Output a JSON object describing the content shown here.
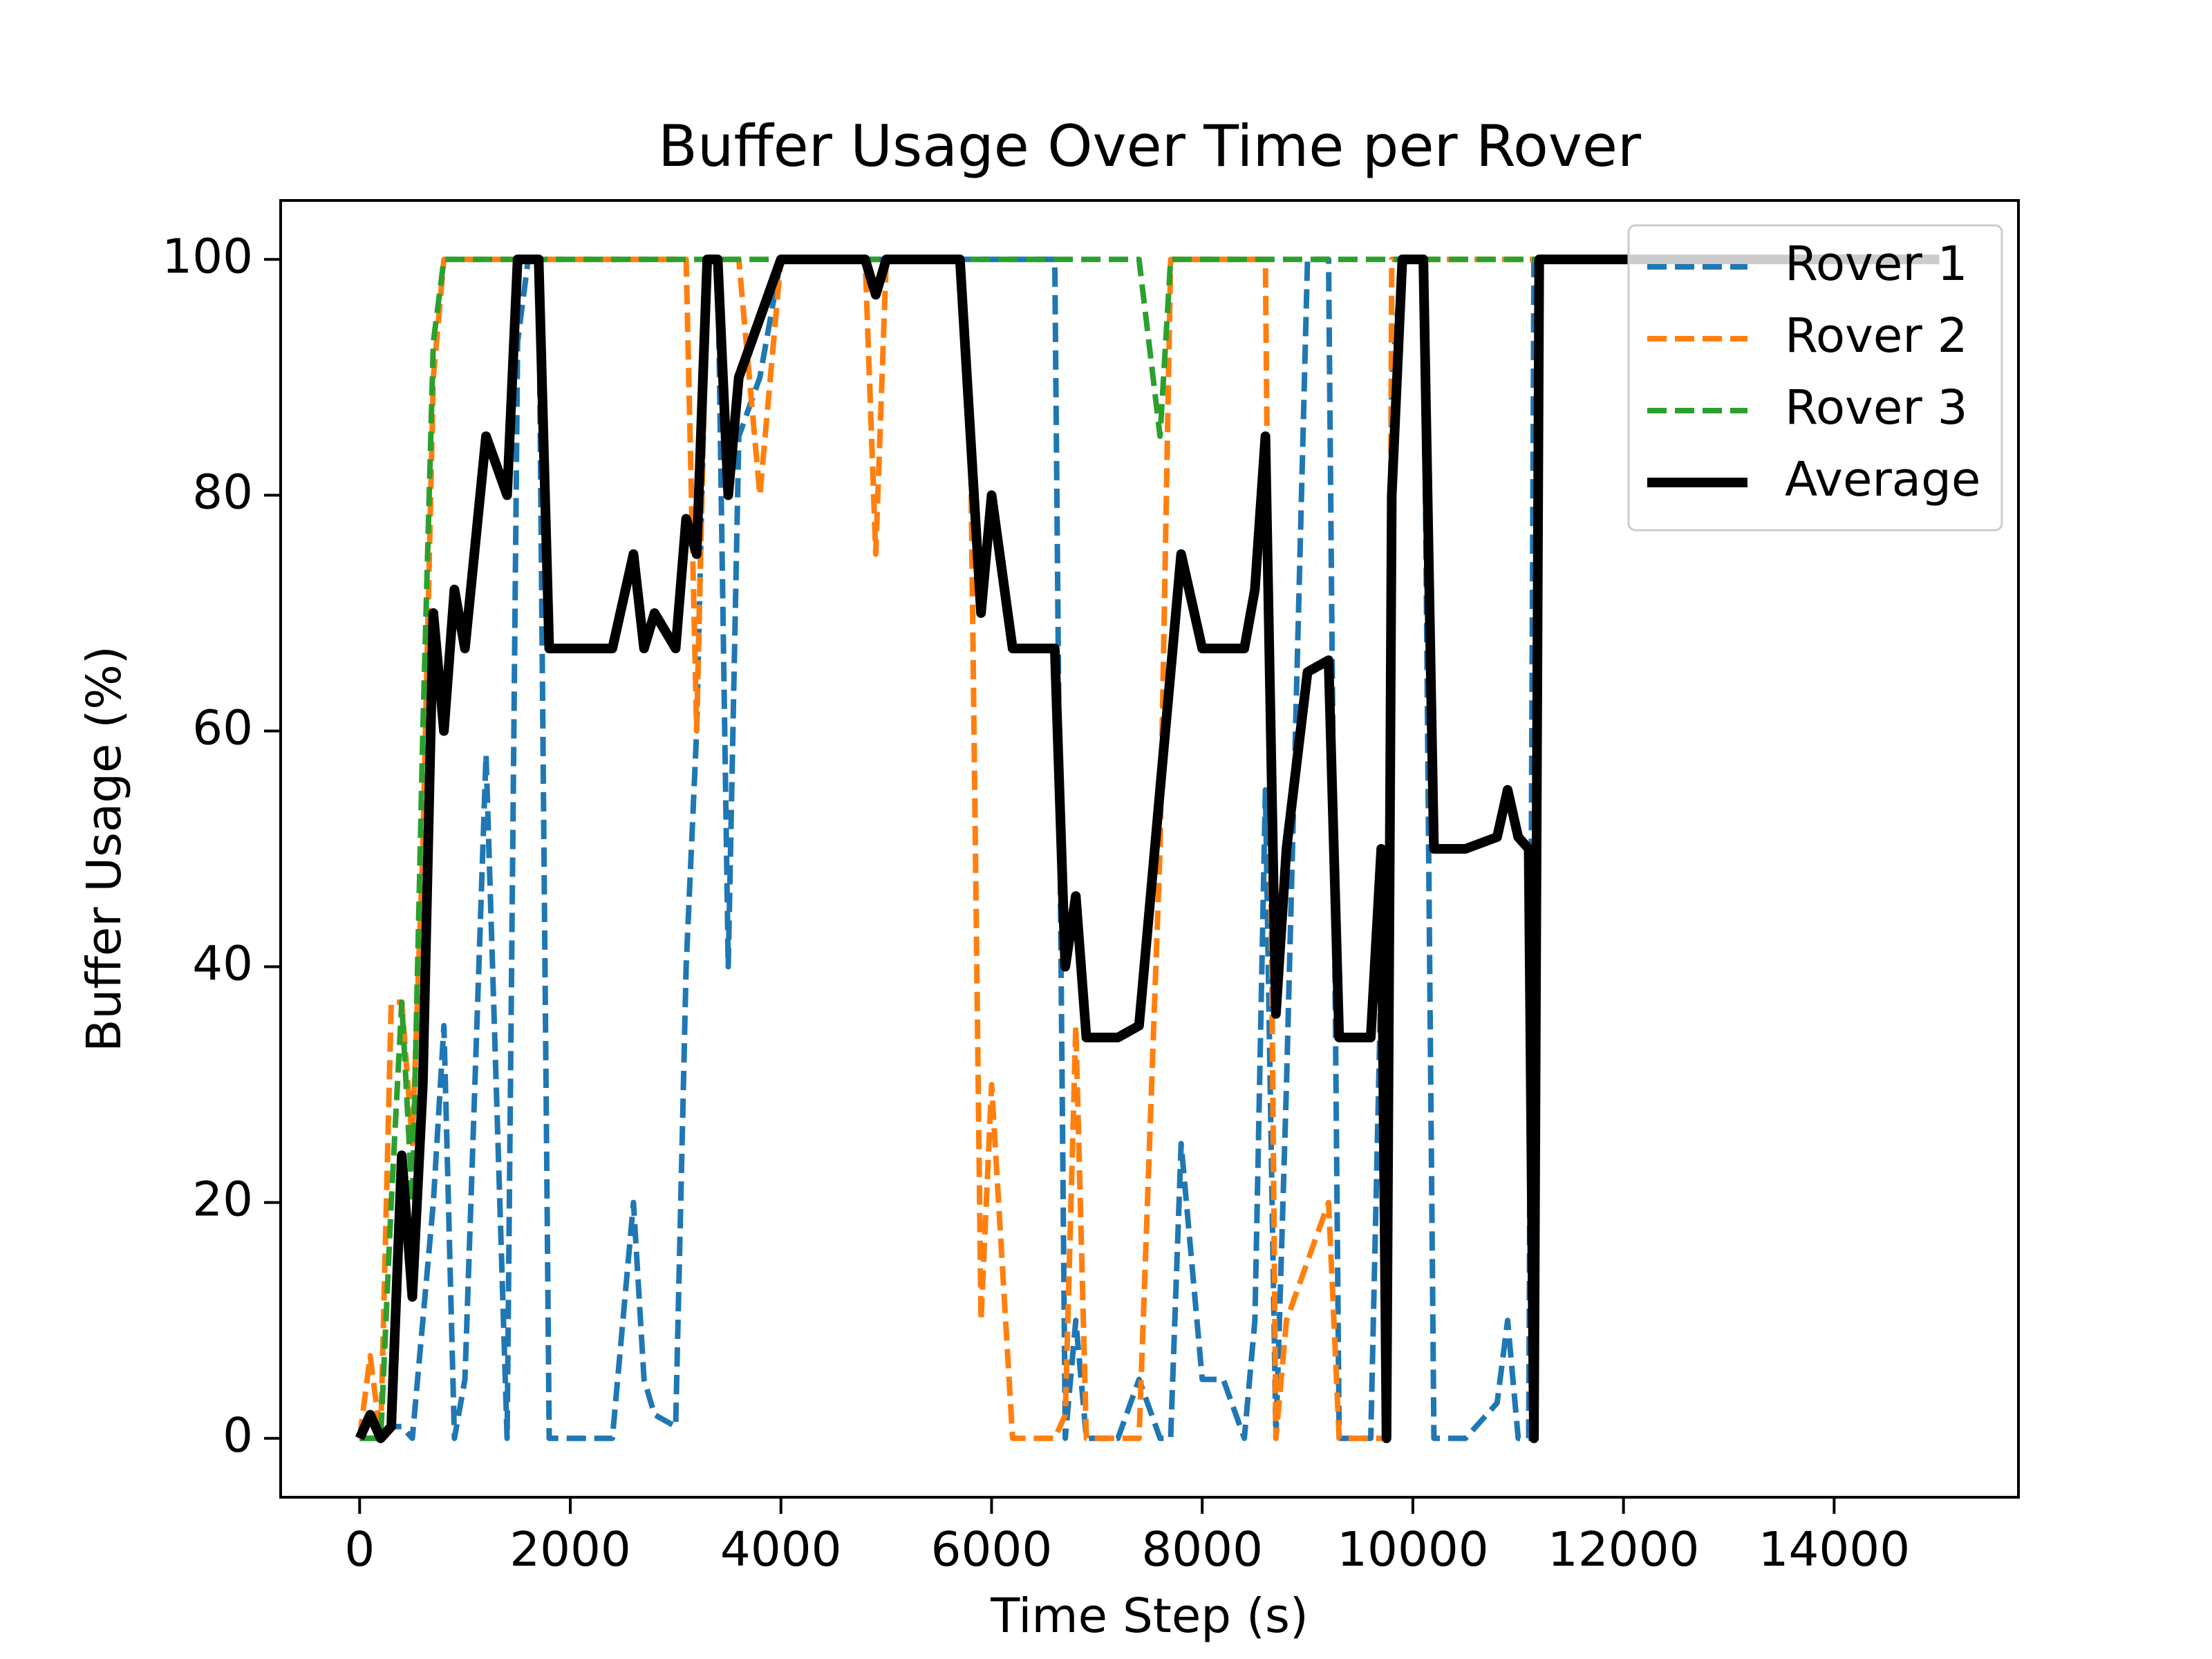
{
  "chart_data": {
    "type": "line",
    "title": "Buffer Usage Over Time per Rover",
    "xlabel": "Time Step (s)",
    "ylabel": "Buffer Usage (%)",
    "x": [
      0,
      100,
      200,
      300,
      400,
      500,
      600,
      700,
      800,
      900,
      1000,
      1200,
      1400,
      1500,
      1600,
      1700,
      1800,
      2000,
      2200,
      2400,
      2600,
      2700,
      2800,
      3000,
      3100,
      3200,
      3300,
      3400,
      3500,
      3600,
      3800,
      4000,
      4500,
      4800,
      4900,
      5000,
      5500,
      5700,
      5800,
      5900,
      6000,
      6200,
      6400,
      6600,
      6700,
      6800,
      6900,
      7000,
      7200,
      7400,
      7600,
      7700,
      7800,
      8000,
      8200,
      8400,
      8500,
      8600,
      8700,
      8800,
      9000,
      9200,
      9300,
      9400,
      9600,
      9700,
      9750,
      9800,
      9900,
      10000,
      10100,
      10200,
      10500,
      10800,
      10900,
      11000,
      11100,
      11150,
      11200,
      12000,
      15000
    ],
    "series": [
      {
        "name": "Rover 1",
        "color": "#1f77b4",
        "dashed": true,
        "values": [
          0,
          0,
          0,
          1,
          1,
          0,
          10,
          20,
          35,
          0,
          5,
          58,
          0,
          93,
          100,
          100,
          0,
          0,
          0,
          0,
          20,
          5,
          2,
          1,
          40,
          60,
          100,
          100,
          40,
          85,
          90,
          100,
          100,
          100,
          100,
          100,
          100,
          100,
          100,
          100,
          100,
          100,
          100,
          100,
          0,
          10,
          0,
          0,
          0,
          5,
          0,
          0,
          25,
          5,
          5,
          0,
          10,
          55,
          0,
          30,
          100,
          100,
          0,
          0,
          0,
          40,
          0,
          90,
          100,
          100,
          100,
          0,
          0,
          3,
          10,
          0,
          0,
          100,
          100,
          100,
          100
        ]
      },
      {
        "name": "Rover 2",
        "color": "#ff7f0e",
        "dashed": true,
        "values": [
          0,
          7,
          0,
          37,
          37,
          25,
          50,
          90,
          100,
          100,
          100,
          100,
          100,
          100,
          100,
          100,
          100,
          100,
          100,
          100,
          100,
          100,
          100,
          100,
          100,
          60,
          100,
          100,
          100,
          100,
          80,
          100,
          100,
          100,
          75,
          100,
          100,
          100,
          85,
          10,
          30,
          0,
          0,
          0,
          2,
          35,
          0,
          0,
          0,
          0,
          50,
          100,
          100,
          100,
          100,
          100,
          100,
          100,
          0,
          10,
          15,
          20,
          0,
          0,
          0,
          0,
          0,
          100,
          100,
          100,
          100,
          100,
          100,
          100,
          100,
          100,
          100,
          100,
          100,
          100,
          100
        ]
      },
      {
        "name": "Rover 3",
        "color": "#2ca02c",
        "dashed": true,
        "values": [
          0,
          0,
          0,
          20,
          37,
          20,
          60,
          93,
          100,
          100,
          100,
          100,
          100,
          100,
          100,
          100,
          100,
          100,
          100,
          100,
          100,
          100,
          100,
          100,
          100,
          100,
          100,
          100,
          100,
          100,
          100,
          100,
          100,
          100,
          100,
          100,
          100,
          100,
          100,
          100,
          100,
          100,
          100,
          100,
          100,
          100,
          100,
          100,
          100,
          100,
          85,
          100,
          100,
          100,
          100,
          100,
          100,
          100,
          100,
          100,
          100,
          100,
          100,
          100,
          100,
          100,
          100,
          100,
          100,
          100,
          100,
          100,
          100,
          100,
          100,
          100,
          100,
          100,
          100,
          100,
          100
        ]
      },
      {
        "name": "Average",
        "color": "#000000",
        "dashed": false,
        "values": [
          0,
          2,
          0,
          1,
          24,
          12,
          30,
          70,
          60,
          72,
          67,
          85,
          80,
          100,
          100,
          100,
          67,
          67,
          67,
          67,
          75,
          67,
          70,
          67,
          78,
          75,
          100,
          100,
          80,
          90,
          95,
          100,
          100,
          100,
          97,
          100,
          100,
          100,
          85,
          70,
          80,
          67,
          67,
          67,
          40,
          46,
          34,
          34,
          34,
          35,
          55,
          65,
          75,
          67,
          67,
          67,
          72,
          85,
          36,
          50,
          65,
          66,
          34,
          34,
          34,
          50,
          0,
          80,
          100,
          100,
          100,
          50,
          50,
          51,
          55,
          51,
          50,
          0,
          100,
          100,
          100
        ]
      }
    ],
    "xlim": [
      -750,
      15750
    ],
    "ylim": [
      -5,
      105
    ],
    "xticks": [
      0,
      2000,
      4000,
      6000,
      8000,
      10000,
      12000,
      14000
    ],
    "yticks": [
      0,
      20,
      40,
      60,
      80,
      100
    ],
    "legend": "upper right",
    "grid": false
  }
}
